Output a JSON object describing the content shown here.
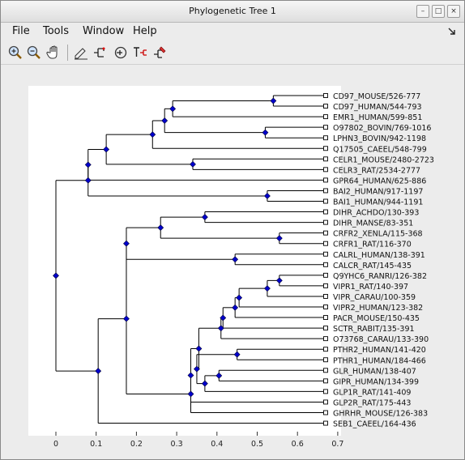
{
  "window": {
    "title": "Phylogenetic Tree 1",
    "controls": [
      "minimize-icon",
      "maximize-icon",
      "close-icon"
    ]
  },
  "menu": {
    "items": [
      "File",
      "Tools",
      "Window",
      "Help"
    ],
    "right_icon": "pin-arrow-icon"
  },
  "toolbar": {
    "icons": [
      "zoom-in-icon",
      "zoom-out-icon",
      "hand-pan-icon",
      "edit-branch-icon",
      "tree-layout-icon",
      "recenter-icon",
      "text-label-icon",
      "color-branch-icon"
    ]
  },
  "tree": {
    "leaves": [
      "CD97_MOUSE/526-777",
      "CD97_HUMAN/544-793",
      "EMR1_HUMAN/599-851",
      "O97802_BOVIN/769-1016",
      "LPHN3_BOVIN/942-1198",
      "Q17505_CAEEL/548-799",
      "CELR1_MOUSE/2480-2723",
      "CELR3_RAT/2534-2777",
      "GPR64_HUMAN/625-886",
      "BAI2_HUMAN/917-1197",
      "BAI1_HUMAN/944-1191",
      "DIHR_ACHDO/130-393",
      "DIHR_MANSE/83-351",
      "CRFR2_XENLA/115-368",
      "CRFR1_RAT/116-370",
      "CALRL_HUMAN/138-391",
      "CALCR_RAT/145-435",
      "Q9YHC6_RANRI/126-382",
      "VIPR1_RAT/140-397",
      "VIPR_CARAU/100-359",
      "VIPR2_HUMAN/123-382",
      "PACR_MOUSE/150-435",
      "SCTR_RABIT/135-391",
      "O73768_CARAU/133-390",
      "PTHR2_HUMAN/141-420",
      "PTHR1_HUMAN/184-466",
      "GLR_HUMAN/138-407",
      "GIPR_HUMAN/134-399",
      "GLP1R_RAT/141-409",
      "GLP2R_RAT/175-443",
      "GHRHR_MOUSE/126-383",
      "SEB1_CAEEL/164-436"
    ],
    "internal_nodes": [
      {
        "x": 0.54,
        "children": [
          "CD97_MOUSE/526-777",
          "CD97_HUMAN/544-793"
        ]
      },
      {
        "x": 0.29,
        "children": [
          0,
          "EMR1_HUMAN/599-851"
        ]
      },
      {
        "x": 0.52,
        "children": [
          "O97802_BOVIN/769-1016",
          "LPHN3_BOVIN/942-1198"
        ]
      },
      {
        "x": 0.27,
        "children": [
          1,
          2
        ]
      },
      {
        "x": 0.24,
        "children": [
          3,
          "Q17505_CAEEL/548-799"
        ]
      },
      {
        "x": 0.34,
        "children": [
          "CELR1_MOUSE/2480-2723",
          "CELR3_RAT/2534-2777"
        ]
      },
      {
        "x": 0.125,
        "children": [
          4,
          5
        ]
      },
      {
        "x": 0.08,
        "children": [
          6,
          "GPR64_HUMAN/625-886"
        ]
      },
      {
        "x": 0.525,
        "children": [
          "BAI2_HUMAN/917-1197",
          "BAI1_HUMAN/944-1191"
        ]
      },
      {
        "x": 0.08,
        "children": [
          7,
          8
        ]
      },
      {
        "x": 0.37,
        "children": [
          "DIHR_ACHDO/130-393",
          "DIHR_MANSE/83-351"
        ]
      },
      {
        "x": 0.555,
        "children": [
          "CRFR2_XENLA/115-368",
          "CRFR1_RAT/116-370"
        ]
      },
      {
        "x": 0.26,
        "children": [
          10,
          11
        ]
      },
      {
        "x": 0.445,
        "children": [
          "CALRL_HUMAN/138-391",
          "CALCR_RAT/145-435"
        ]
      },
      {
        "x": 0.175,
        "children": [
          12,
          13
        ]
      },
      {
        "x": 0.555,
        "children": [
          "Q9YHC6_RANRI/126-382",
          "VIPR1_RAT/140-397"
        ]
      },
      {
        "x": 0.525,
        "children": [
          15,
          "VIPR_CARAU/100-359"
        ]
      },
      {
        "x": 0.455,
        "children": [
          16,
          "VIPR2_HUMAN/123-382"
        ]
      },
      {
        "x": 0.445,
        "children": [
          17,
          "PACR_MOUSE/150-435"
        ]
      },
      {
        "x": 0.415,
        "children": [
          18,
          "SCTR_RABIT/135-391"
        ]
      },
      {
        "x": 0.41,
        "children": [
          19,
          "O73768_CARAU/133-390"
        ]
      },
      {
        "x": 0.45,
        "children": [
          "PTHR2_HUMAN/141-420",
          "PTHR1_HUMAN/184-466"
        ]
      },
      {
        "x": 0.405,
        "children": [
          "GLR_HUMAN/138-407",
          "GIPR_HUMAN/134-399"
        ]
      },
      {
        "x": 0.37,
        "children": [
          22,
          "GLP1R_RAT/141-409"
        ]
      },
      {
        "x": 0.35,
        "children": [
          21,
          23
        ]
      },
      {
        "x": 0.355,
        "children": [
          20,
          24
        ]
      },
      {
        "x": 0.335,
        "children": [
          25,
          "GLP2R_RAT/175-443"
        ]
      },
      {
        "x": 0.335,
        "children": [
          26,
          "GHRHR_MOUSE/126-383"
        ]
      },
      {
        "x": 0.175,
        "children": [
          14,
          27
        ]
      },
      {
        "x": 0.105,
        "children": [
          28,
          "SEB1_CAEEL/164-436"
        ]
      },
      {
        "x": 0.0,
        "children": [
          9,
          29
        ]
      }
    ],
    "x_axis": {
      "min": -0.07,
      "max": 0.7,
      "ticks": [
        "0",
        "0.1",
        "0.2",
        "0.3",
        "0.4",
        "0.5",
        "0.6",
        "0.7"
      ]
    },
    "leaf_x": 0.67,
    "colors": {
      "node": "#0000cc",
      "branch": "#000000",
      "background": "#ffffff"
    }
  }
}
